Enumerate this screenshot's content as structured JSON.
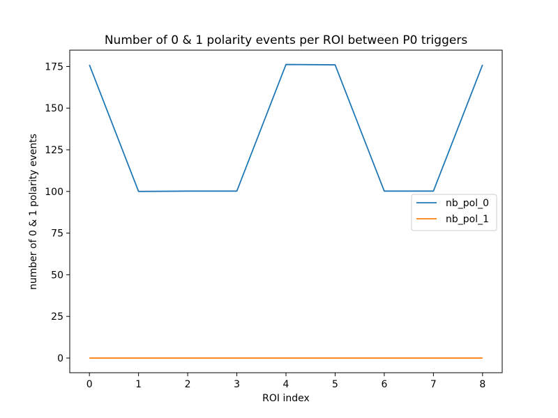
{
  "chart_data": {
    "type": "line",
    "title": "Number of 0 & 1 polarity events per ROI between P0 triggers",
    "xlabel": "ROI index",
    "ylabel": "number of 0 & 1 polarity events",
    "x": [
      0,
      1,
      2,
      3,
      4,
      5,
      6,
      7,
      8
    ],
    "xticks": [
      "0",
      "1",
      "2",
      "3",
      "4",
      "5",
      "6",
      "7",
      "8"
    ],
    "yticks": [
      "0",
      "25",
      "50",
      "75",
      "100",
      "125",
      "150",
      "175"
    ],
    "xlim": [
      -0.4,
      8.4
    ],
    "ylim": [
      -8.8,
      184.8
    ],
    "grid": false,
    "legend_position": "center-right",
    "series": [
      {
        "name": "nb_pol_0",
        "color": "#1f77b4",
        "values": [
          176,
          100,
          100.2,
          100.2,
          176.2,
          176,
          100.2,
          100.2,
          176
        ]
      },
      {
        "name": "nb_pol_1",
        "color": "#ff7f0e",
        "values": [
          0,
          0,
          0,
          0,
          0,
          0,
          0,
          0,
          0
        ]
      }
    ]
  }
}
